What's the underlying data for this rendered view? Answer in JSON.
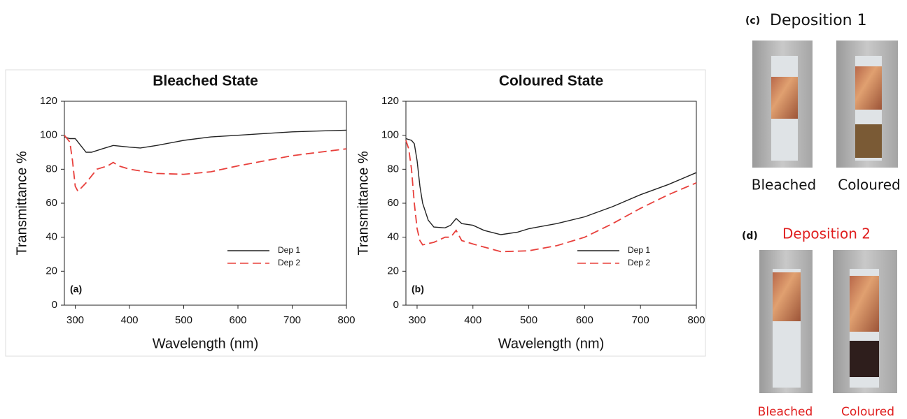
{
  "chart_data": [
    {
      "type": "line",
      "title": "Bleached State",
      "panel_label": "(a)",
      "x_label": "Wavelength (nm)",
      "y_label": "Transmittance %",
      "xlim": [
        280,
        800
      ],
      "xticks": [
        300,
        400,
        500,
        600,
        700,
        800
      ],
      "ylim": [
        0,
        120
      ],
      "yticks": [
        0,
        20,
        40,
        60,
        80,
        100,
        120
      ],
      "legend": "lower right",
      "series": [
        {
          "name": "Dep 1",
          "color": "#222222",
          "linestyle": "solid",
          "x": [
            280,
            290,
            300,
            310,
            320,
            330,
            350,
            370,
            400,
            420,
            450,
            500,
            550,
            600,
            650,
            700,
            750,
            800
          ],
          "values": [
            99,
            98,
            98,
            94,
            90,
            90,
            92,
            94,
            93,
            92.5,
            94,
            97,
            99,
            100,
            101,
            102,
            102.5,
            103
          ]
        },
        {
          "name": "Dep 2",
          "color": "#e8403c",
          "linestyle": "dashed",
          "x": [
            280,
            290,
            295,
            300,
            305,
            320,
            340,
            360,
            370,
            380,
            400,
            450,
            500,
            550,
            600,
            650,
            700,
            750,
            800
          ],
          "values": [
            100,
            96,
            85,
            70,
            67,
            72,
            80,
            82,
            84,
            82,
            80,
            77.5,
            77,
            78.5,
            82,
            85,
            88,
            90,
            92
          ]
        }
      ]
    },
    {
      "type": "line",
      "title": "Coloured State",
      "panel_label": "(b)",
      "x_label": "Wavelength (nm)",
      "y_label": "Transmittance %",
      "xlim": [
        280,
        800
      ],
      "xticks": [
        300,
        400,
        500,
        600,
        700,
        800
      ],
      "ylim": [
        0,
        120
      ],
      "yticks": [
        0,
        20,
        40,
        60,
        80,
        100,
        120
      ],
      "legend": "lower right",
      "series": [
        {
          "name": "Dep 1",
          "color": "#222222",
          "linestyle": "solid",
          "x": [
            280,
            290,
            295,
            300,
            305,
            310,
            320,
            330,
            350,
            360,
            370,
            380,
            400,
            420,
            450,
            480,
            500,
            550,
            600,
            650,
            700,
            750,
            800
          ],
          "values": [
            98,
            97,
            95,
            85,
            70,
            60,
            50,
            46,
            45.5,
            47,
            51,
            48,
            47,
            44,
            41.5,
            43,
            45,
            48,
            52,
            58,
            65,
            71,
            78
          ]
        },
        {
          "name": "Dep 2",
          "color": "#e8403c",
          "linestyle": "dashed",
          "x": [
            280,
            285,
            290,
            295,
            300,
            305,
            310,
            330,
            350,
            360,
            370,
            380,
            400,
            450,
            500,
            550,
            600,
            650,
            700,
            750,
            800
          ],
          "values": [
            97,
            92,
            80,
            60,
            45,
            38,
            35.5,
            37,
            40,
            40,
            44,
            38,
            36,
            31.5,
            32,
            35,
            40,
            48,
            57,
            65,
            72
          ]
        }
      ]
    }
  ],
  "photo_panels": [
    {
      "label": "(c)",
      "title": "Deposition 1",
      "captions": [
        "Bleached",
        "Coloured"
      ]
    },
    {
      "label": "(d)",
      "title": "Deposition 2",
      "captions": [
        "Bleached",
        "Coloured"
      ]
    }
  ]
}
